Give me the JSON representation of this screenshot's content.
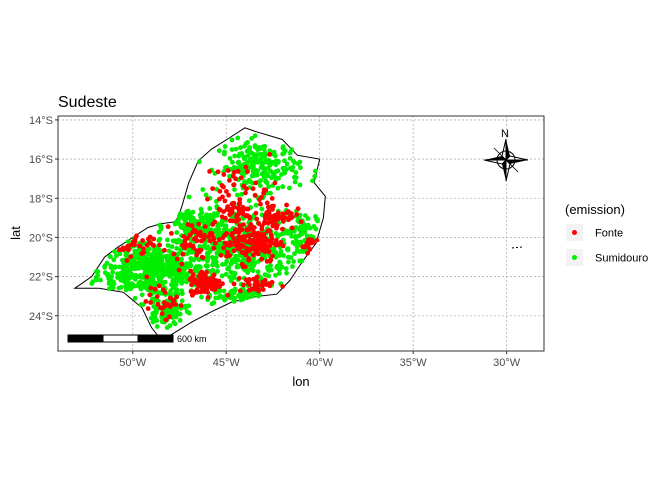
{
  "chart_data": {
    "type": "scatter",
    "title": "Sudeste",
    "xlabel": "lon",
    "ylabel": "lat",
    "xlim": [
      -54,
      -28
    ],
    "ylim": [
      -25.8,
      -13.8
    ],
    "x_ticks": [
      -50,
      -45,
      -40,
      -35,
      -30
    ],
    "x_tick_labels": [
      "50°W",
      "45°W",
      "40°W",
      "35°W",
      "30°W"
    ],
    "y_ticks": [
      -14,
      -16,
      -18,
      -20,
      -22,
      -24
    ],
    "y_tick_labels": [
      "14°S",
      "16°S",
      "18°S",
      "20°S",
      "22°S",
      "24°S"
    ],
    "grid": true,
    "grid_style": "dotted",
    "legend": {
      "title": "(emission)",
      "placement": "right",
      "entries": [
        {
          "label": "Fonte",
          "color": "#ff0000"
        },
        {
          "label": "Sumidouro",
          "color": "#00ee00"
        }
      ]
    },
    "region_outline": [
      [
        -53.1,
        -22.6
      ],
      [
        -52.2,
        -22.0
      ],
      [
        -51.5,
        -21.0
      ],
      [
        -50.8,
        -20.5
      ],
      [
        -50.0,
        -20.0
      ],
      [
        -49.2,
        -19.5
      ],
      [
        -48.5,
        -19.3
      ],
      [
        -47.7,
        -19.2
      ],
      [
        -47.4,
        -18.5
      ],
      [
        -47.0,
        -17.2
      ],
      [
        -46.5,
        -16.1
      ],
      [
        -45.8,
        -15.5
      ],
      [
        -44.8,
        -14.9
      ],
      [
        -44.0,
        -14.4
      ],
      [
        -43.4,
        -14.6
      ],
      [
        -42.0,
        -15.0
      ],
      [
        -41.2,
        -15.8
      ],
      [
        -40.0,
        -16.0
      ],
      [
        -40.3,
        -17.2
      ],
      [
        -39.7,
        -17.9
      ],
      [
        -39.8,
        -19.0
      ],
      [
        -40.2,
        -20.3
      ],
      [
        -40.9,
        -21.2
      ],
      [
        -41.6,
        -22.2
      ],
      [
        -42.3,
        -22.9
      ],
      [
        -43.3,
        -23.0
      ],
      [
        -44.7,
        -23.3
      ],
      [
        -45.8,
        -23.8
      ],
      [
        -46.8,
        -24.3
      ],
      [
        -48.0,
        -25.0
      ],
      [
        -48.5,
        -25.2
      ],
      [
        -49.0,
        -24.6
      ],
      [
        -49.5,
        -23.6
      ],
      [
        -50.5,
        -22.8
      ],
      [
        -51.8,
        -22.6
      ],
      [
        -53.1,
        -22.6
      ]
    ],
    "series": [
      {
        "name": "Fonte",
        "color": "#ff0000",
        "clusters": [
          {
            "lon": -43.7,
            "lat": -20.2,
            "spread_lon": 1.3,
            "spread_lat": 0.9,
            "n": 160
          },
          {
            "lon": -46.1,
            "lat": -22.3,
            "spread_lon": 0.7,
            "spread_lat": 0.5,
            "n": 110
          },
          {
            "lon": -42.3,
            "lat": -18.9,
            "spread_lon": 0.8,
            "spread_lat": 0.6,
            "n": 60
          },
          {
            "lon": -44.6,
            "lat": -18.7,
            "spread_lon": 0.9,
            "spread_lat": 0.5,
            "n": 45
          },
          {
            "lon": -46.8,
            "lat": -20.1,
            "spread_lon": 0.9,
            "spread_lat": 0.7,
            "n": 50
          },
          {
            "lon": -44.2,
            "lat": -17.4,
            "spread_lon": 1.6,
            "spread_lat": 1.0,
            "n": 40
          },
          {
            "lon": -50.5,
            "lat": -20.1,
            "spread_lon": 1.3,
            "spread_lat": 0.8,
            "n": 30
          },
          {
            "lon": -48.3,
            "lat": -23.3,
            "spread_lon": 0.8,
            "spread_lat": 0.6,
            "n": 30
          },
          {
            "lon": -43.5,
            "lat": -22.4,
            "spread_lon": 0.9,
            "spread_lat": 0.4,
            "n": 35
          },
          {
            "lon": -40.6,
            "lat": -20.4,
            "spread_lon": 0.3,
            "spread_lat": 0.6,
            "n": 18
          }
        ]
      },
      {
        "name": "Sumidouro",
        "color": "#00ee00",
        "clusters": [
          {
            "lon": -49.0,
            "lat": -21.7,
            "spread_lon": 2.4,
            "spread_lat": 1.1,
            "n": 520
          },
          {
            "lon": -44.4,
            "lat": -20.6,
            "spread_lon": 2.6,
            "spread_lat": 1.6,
            "n": 430
          },
          {
            "lon": -43.2,
            "lat": -16.4,
            "spread_lon": 1.8,
            "spread_lat": 1.1,
            "n": 230
          },
          {
            "lon": -46.7,
            "lat": -19.4,
            "spread_lon": 1.2,
            "spread_lat": 0.9,
            "n": 110
          },
          {
            "lon": -48.2,
            "lat": -23.8,
            "spread_lon": 0.9,
            "spread_lat": 0.6,
            "n": 90
          },
          {
            "lon": -41.0,
            "lat": -19.8,
            "spread_lon": 0.7,
            "spread_lat": 1.0,
            "n": 80
          },
          {
            "lon": -44.6,
            "lat": -23.0,
            "spread_lon": 1.2,
            "spread_lat": 0.3,
            "n": 60
          }
        ]
      }
    ]
  },
  "scale_bar": {
    "label": "600 km"
  },
  "north_arrow": {
    "label": "N"
  }
}
